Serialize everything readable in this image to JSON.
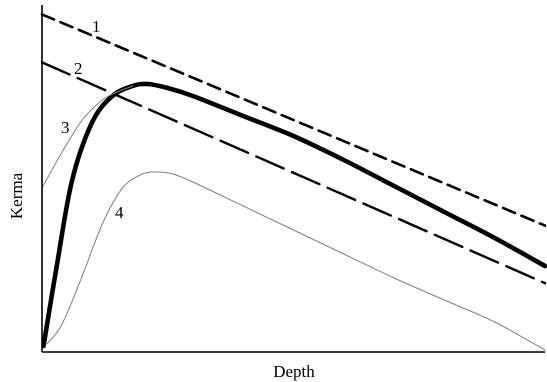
{
  "chart_data": {
    "type": "line",
    "title": "",
    "xlabel": "Depth",
    "ylabel": "Kerma",
    "xlim": [
      0,
      10
    ],
    "ylim": [
      0,
      10
    ],
    "grid": false,
    "legend": "none",
    "series": [
      {
        "label": "1",
        "style": "short-dash",
        "color": "#000000",
        "x": [
          0,
          10
        ],
        "y": [
          9.84,
          4.56
        ]
      },
      {
        "label": "2",
        "style": "long-dash",
        "color": "#000000",
        "x": [
          0,
          10
        ],
        "y": [
          8.64,
          3.12
        ]
      },
      {
        "label": "3",
        "style": "thick-solid",
        "color": "#000000",
        "x": [
          0.03,
          0.3,
          0.6,
          1.0,
          1.4,
          1.8,
          2.1,
          2.5,
          3.0,
          4.0,
          5.0,
          6.0,
          7.0,
          8.0,
          9.0,
          10.0
        ],
        "y": [
          1.55,
          3.6,
          5.7,
          7.15,
          7.8,
          8.05,
          8.1,
          8.0,
          7.8,
          7.3,
          6.8,
          6.2,
          5.55,
          4.9,
          4.25,
          3.55
        ]
      },
      {
        "label": "",
        "style": "thin-solid",
        "color": "#808080",
        "x": [
          0,
          0.4,
          0.8,
          1.2,
          1.5,
          1.8
        ],
        "y": [
          5.5,
          6.4,
          7.2,
          7.7,
          7.9,
          8.05
        ]
      },
      {
        "label": "4",
        "style": "thin-solid",
        "color": "#808080",
        "x": [
          0.1,
          0.4,
          0.8,
          1.2,
          1.6,
          2.0,
          2.3,
          2.6,
          3.0,
          4.0,
          5.0,
          6.0,
          7.0,
          8.0,
          9.0,
          10.0
        ],
        "y": [
          1.6,
          2.1,
          3.3,
          4.6,
          5.5,
          5.85,
          5.9,
          5.85,
          5.65,
          5.05,
          4.45,
          3.85,
          3.25,
          2.7,
          2.15,
          1.45
        ]
      }
    ]
  }
}
